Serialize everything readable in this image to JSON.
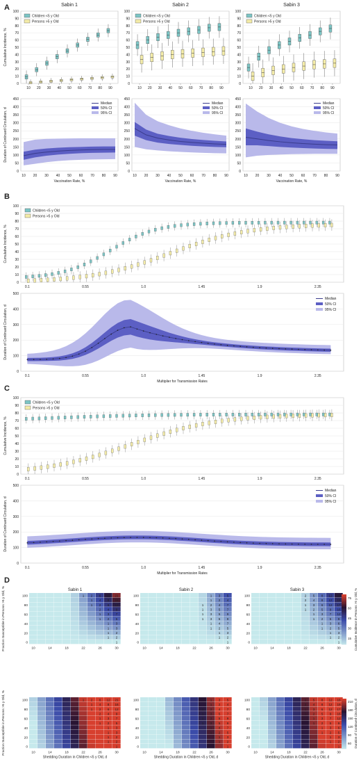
{
  "colors": {
    "children": "#7cc5c5",
    "persons": "#f4eca9",
    "median": "#3a3c8c",
    "ci50": "#5c5fc4",
    "ci95": "#b9b9ea",
    "panel_bg": "#ffffff",
    "grid": "#e6e6e6",
    "heat_low": "#c6e9ec",
    "heat_mid": "#3a4aa8",
    "heat_high": "#d73f2e"
  },
  "panel_labels": [
    "A",
    "B",
    "C",
    "D"
  ],
  "chart_data": [
    {
      "panel": "A",
      "type": "box",
      "title": "Sabin 1",
      "xlabel": "",
      "ylabel": "Cumulative Incidence, %",
      "ylim": [
        0,
        100
      ],
      "categories": [
        10,
        20,
        30,
        40,
        50,
        60,
        70,
        80,
        90
      ],
      "legend": "top-left",
      "series": [
        {
          "name": "Children <5 y Old",
          "medians": [
            9,
            19,
            28,
            37,
            45,
            53,
            61,
            67,
            73
          ]
        },
        {
          "name": "Persons >5 y Old",
          "medians": [
            1,
            2,
            3,
            4,
            5,
            6,
            7,
            8,
            9
          ]
        }
      ]
    },
    {
      "panel": "A",
      "type": "box",
      "title": "Sabin 2",
      "ylim": [
        0,
        100
      ],
      "categories": [
        10,
        20,
        30,
        40,
        50,
        60,
        70,
        80,
        90
      ],
      "legend": "top-left",
      "series": [
        {
          "name": "Children <5 y Old",
          "medians": [
            53,
            60,
            64,
            67,
            70,
            72,
            74,
            77,
            78
          ]
        },
        {
          "name": "Persons >5 y Old",
          "medians": [
            33,
            36,
            38,
            40,
            41,
            42,
            43,
            44,
            45
          ]
        }
      ]
    },
    {
      "panel": "A",
      "type": "box",
      "title": "Sabin 3",
      "ylim": [
        0,
        100
      ],
      "categories": [
        10,
        20,
        30,
        40,
        50,
        60,
        70,
        80,
        90
      ],
      "legend": "top-left",
      "series": [
        {
          "name": "Children <5 y Old",
          "medians": [
            22,
            37,
            46,
            53,
            58,
            63,
            67,
            72,
            76
          ]
        },
        {
          "name": "Persons >5 y Old",
          "medians": [
            10,
            15,
            18,
            20,
            22,
            24,
            26,
            27,
            28
          ]
        }
      ]
    },
    {
      "panel": "A",
      "type": "area",
      "xlabel": "Vaccination Rate, %",
      "ylabel": "Duration of Continued Circulation, d",
      "ylim": [
        0,
        450
      ],
      "x": [
        10,
        20,
        30,
        40,
        50,
        60,
        70,
        80,
        90
      ],
      "legend": "top-right",
      "series": [
        {
          "name": "Median",
          "values": [
            95,
            110,
            118,
            124,
            128,
            131,
            133,
            134,
            134
          ]
        },
        {
          "name": "50% CI",
          "lower": [
            70,
            85,
            95,
            102,
            107,
            111,
            113,
            114,
            115
          ],
          "upper": [
            120,
            133,
            140,
            145,
            148,
            150,
            152,
            153,
            153
          ]
        },
        {
          "name": "95% CI",
          "lower": [
            35,
            45,
            55,
            62,
            67,
            70,
            72,
            73,
            74
          ],
          "upper": [
            180,
            195,
            200,
            202,
            203,
            204,
            204,
            204,
            204
          ]
        }
      ]
    },
    {
      "panel": "A",
      "type": "area",
      "xlabel": "Vaccination Rate, %",
      "ylim": [
        0,
        450
      ],
      "x": [
        10,
        20,
        30,
        40,
        50,
        60,
        70,
        80,
        90
      ],
      "legend": "top-right",
      "series": [
        {
          "name": "Median",
          "values": [
            265,
            225,
            205,
            193,
            184,
            178,
            173,
            169,
            166
          ]
        },
        {
          "name": "50% CI",
          "lower": [
            220,
            192,
            177,
            168,
            162,
            157,
            153,
            150,
            148
          ],
          "upper": [
            305,
            258,
            232,
            218,
            207,
            199,
            193,
            188,
            184
          ]
        },
        {
          "name": "95% CI",
          "lower": [
            150,
            135,
            128,
            123,
            119,
            116,
            113,
            111,
            110
          ],
          "upper": [
            425,
            350,
            310,
            285,
            265,
            250,
            238,
            228,
            220
          ]
        }
      ]
    },
    {
      "panel": "A",
      "type": "area",
      "xlabel": "Vaccination Rate, %",
      "ylim": [
        0,
        450
      ],
      "x": [
        10,
        20,
        30,
        40,
        50,
        60,
        70,
        80,
        90
      ],
      "legend": "top-right",
      "series": [
        {
          "name": "Median",
          "values": [
            210,
            200,
            190,
            182,
            176,
            171,
            167,
            164,
            162
          ]
        },
        {
          "name": "50% CI",
          "lower": [
            160,
            160,
            155,
            150,
            146,
            143,
            140,
            138,
            137
          ],
          "upper": [
            265,
            245,
            228,
            215,
            205,
            198,
            192,
            188,
            185
          ]
        },
        {
          "name": "95% CI",
          "lower": [
            85,
            95,
            100,
            103,
            105,
            106,
            107,
            107,
            107
          ],
          "upper": [
            420,
            370,
            330,
            300,
            278,
            262,
            250,
            240,
            233
          ]
        }
      ]
    },
    {
      "panel": "B",
      "type": "box",
      "ylabel": "Cumulative Incidence, %",
      "ylim": [
        0,
        100
      ],
      "xtick_labels": [
        "0.1",
        "0.55",
        "1.0",
        "1.45",
        "1.9",
        "2.35"
      ],
      "xlim": [
        0.05,
        2.55
      ],
      "legend": "top-left",
      "series": [
        {
          "name": "Children <5 y Old",
          "curve": "children_b"
        },
        {
          "name": "Persons >5 y Old",
          "curve": "persons_b"
        }
      ]
    },
    {
      "panel": "B",
      "type": "area",
      "xlabel": "Multiplier for Transmission Rates",
      "ylabel": "Duration of Continued Circulation, d",
      "ylim": [
        0,
        500
      ],
      "xtick_labels": [
        "0.1",
        "0.55",
        "1.0",
        "1.45",
        "1.9",
        "2.35"
      ],
      "xlim": [
        0.05,
        2.55
      ],
      "legend": "top-right",
      "series": [
        {
          "name": "Median",
          "curve": "median_b",
          "peak_x": 0.9,
          "peak_y": 285
        },
        {
          "name": "50% CI",
          "peak_upper": 330,
          "peak_lower": 225
        },
        {
          "name": "95% CI",
          "peak_upper": 470,
          "peak_lower": 120
        }
      ]
    },
    {
      "panel": "C",
      "type": "box",
      "ylabel": "Cumulative Incidence, %",
      "ylim": [
        0,
        100
      ],
      "xtick_labels": [
        "0.1",
        "0.55",
        "1.0",
        "1.45",
        "1.9",
        "2.35"
      ],
      "xlim": [
        0.05,
        2.55
      ],
      "legend": "top-left",
      "series": [
        {
          "name": "Children <5 y Old",
          "curve": "children_c"
        },
        {
          "name": "Persons >5 y Old",
          "curve": "persons_c"
        }
      ]
    },
    {
      "panel": "C",
      "type": "area",
      "xlabel": "Multiplier for Transmission Rates",
      "ylabel": "Duration of Continued Circulation, d",
      "ylim": [
        0,
        500
      ],
      "xtick_labels": [
        "0.1",
        "0.55",
        "1.0",
        "1.45",
        "1.9",
        "2.35"
      ],
      "xlim": [
        0.05,
        2.55
      ],
      "legend": "top-right",
      "series": [
        {
          "name": "Median",
          "curve": "median_c",
          "peak_x": 0.95,
          "peak_y": 165
        },
        {
          "name": "50% CI"
        },
        {
          "name": "95% CI"
        }
      ]
    },
    {
      "panel": "D",
      "type": "heatmap",
      "titles": [
        "Sabin 1",
        "Sabin 2",
        "Sabin 3"
      ],
      "xlabel": "Shedding Duration in Children <5 y Old, d",
      "ylabel": "Fraction Susceptible in Persons >5 y Old, %",
      "x_ticks": [
        "10",
        "14",
        "18",
        "22",
        "26",
        "30"
      ],
      "y_ticks": [
        "0",
        "20",
        "40",
        "60",
        "80",
        "100"
      ],
      "colorbar_top": {
        "label": "Cumulative Incidence in Persons >5 y Old, %",
        "ticks": [
          "15",
          "30",
          "45",
          "60",
          "75"
        ]
      },
      "colorbar_bottom": {
        "label": "Duration of Continued Circulation, d",
        "ticks": [
          "60",
          "90",
          "120",
          "150",
          "180",
          "210"
        ]
      },
      "cell_annotations": {
        "sabin1_top": [
          [
            "1",
            "2",
            "6",
            "12",
            "21"
          ],
          [
            "1",
            "4",
            "8",
            "16"
          ],
          [
            "1",
            "2",
            "6",
            "12"
          ],
          [
            "2",
            "4",
            "9"
          ],
          [
            "1",
            "3",
            "7"
          ],
          [
            "1",
            "2",
            "5"
          ],
          [
            "1",
            "3"
          ],
          [
            "1",
            "3"
          ],
          [
            "1",
            "2"
          ],
          [
            "1",
            "2"
          ],
          [
            "1"
          ]
        ],
        "sabin2_top": [
          [
            "1",
            "3",
            "5"
          ],
          [
            "1",
            "2",
            "4"
          ],
          [
            "1",
            "2",
            "4",
            "7"
          ],
          [
            "1",
            "3",
            "5",
            "7"
          ],
          [
            "1",
            "3",
            "5",
            "9"
          ],
          [
            "1",
            "3",
            "5",
            "9"
          ],
          [
            "1",
            "4",
            "7"
          ],
          [
            "1",
            "2",
            "5"
          ],
          [
            "1",
            "3"
          ],
          [
            "1",
            "2"
          ],
          [
            "1"
          ]
        ],
        "sabin3_top": [
          [
            "2",
            "5",
            "8",
            "12",
            "16"
          ],
          [
            "2",
            "4",
            "8",
            "12",
            "19"
          ],
          [
            "1",
            "3",
            "6",
            "12",
            "17"
          ],
          [
            "1",
            "2",
            "5",
            "9",
            "16"
          ],
          [
            "1",
            "3",
            "7",
            "12"
          ],
          [
            "1",
            "2",
            "5",
            "9"
          ],
          [
            "1",
            "3",
            "6"
          ],
          [
            "1",
            "2",
            "5"
          ],
          [
            "1",
            "3"
          ],
          [
            "1",
            "2"
          ],
          [
            "1"
          ]
        ]
      }
    }
  ]
}
